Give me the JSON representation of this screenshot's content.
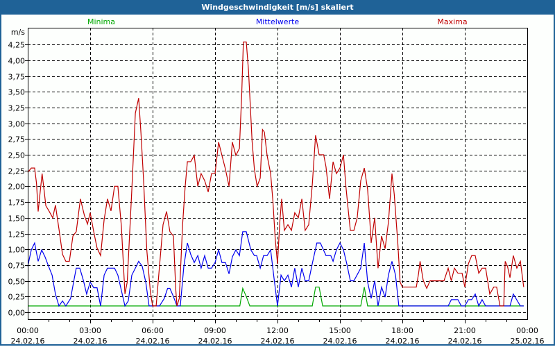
{
  "window": {
    "title": "Windgeschwindigkeit [m/s] skaliert"
  },
  "chart_data": {
    "type": "line",
    "title": "Windgeschwindigkeit [m/s] skaliert",
    "ylabel": "m/s",
    "xlabel": "",
    "ylim": [
      -0.1,
      4.5
    ],
    "xlim_hours": [
      0,
      24
    ],
    "grid": true,
    "legend_placement": "top",
    "y_ticks": [
      "0,00",
      "0,25",
      "0,50",
      "0,75",
      "1,00",
      "1,25",
      "1,50",
      "1,75",
      "2,00",
      "2,25",
      "2,50",
      "2,75",
      "3,00",
      "3,25",
      "3,50",
      "3,75",
      "4,00",
      "4,25"
    ],
    "x_ticks": [
      {
        "time": "00:00",
        "date": "24.02.16"
      },
      {
        "time": "03:00",
        "date": "24.02.16"
      },
      {
        "time": "06:00",
        "date": "24.02.16"
      },
      {
        "time": "09:00",
        "date": "24.02.16"
      },
      {
        "time": "12:00",
        "date": "24.02.16"
      },
      {
        "time": "15:00",
        "date": "24.02.16"
      },
      {
        "time": "18:00",
        "date": "24.02.16"
      },
      {
        "time": "21:00",
        "date": "24.02.16"
      },
      {
        "time": "00:00",
        "date": "25.02.16"
      }
    ],
    "series": [
      {
        "name": "Minima",
        "color": "#00a800",
        "points": [
          [
            0,
            0.1
          ],
          [
            10.19,
            0.1
          ],
          [
            10.33,
            0.38
          ],
          [
            10.5,
            0.25
          ],
          [
            10.67,
            0.1
          ],
          [
            13.67,
            0.1
          ],
          [
            13.83,
            0.4
          ],
          [
            14.0,
            0.4
          ],
          [
            14.17,
            0.1
          ],
          [
            16.0,
            0.1
          ],
          [
            16.17,
            0.4
          ],
          [
            16.33,
            0.1
          ],
          [
            23.83,
            0.1
          ]
        ]
      },
      {
        "name": "Mittelwerte",
        "color": "#0000f0",
        "points": [
          [
            0,
            0.73
          ],
          [
            0.17,
            0.99
          ],
          [
            0.33,
            1.1
          ],
          [
            0.5,
            0.81
          ],
          [
            0.67,
            0.99
          ],
          [
            0.83,
            0.88
          ],
          [
            1.0,
            0.73
          ],
          [
            1.17,
            0.59
          ],
          [
            1.33,
            0.29
          ],
          [
            1.5,
            0.1
          ],
          [
            1.67,
            0.18
          ],
          [
            1.83,
            0.1
          ],
          [
            2.06,
            0.22
          ],
          [
            2.22,
            0.51
          ],
          [
            2.33,
            0.7
          ],
          [
            2.5,
            0.7
          ],
          [
            2.67,
            0.51
          ],
          [
            2.83,
            0.29
          ],
          [
            3.0,
            0.48
          ],
          [
            3.17,
            0.39
          ],
          [
            3.33,
            0.39
          ],
          [
            3.5,
            0.1
          ],
          [
            3.67,
            0.59
          ],
          [
            3.83,
            0.7
          ],
          [
            4.17,
            0.7
          ],
          [
            4.33,
            0.59
          ],
          [
            4.67,
            0.1
          ],
          [
            4.83,
            0.18
          ],
          [
            5.0,
            0.59
          ],
          [
            5.17,
            0.7
          ],
          [
            5.33,
            0.81
          ],
          [
            5.5,
            0.73
          ],
          [
            5.67,
            0.48
          ],
          [
            5.83,
            0.1
          ],
          [
            6.33,
            0.1
          ],
          [
            6.56,
            0.22
          ],
          [
            6.72,
            0.38
          ],
          [
            6.83,
            0.38
          ],
          [
            7.0,
            0.25
          ],
          [
            7.17,
            0.1
          ],
          [
            7.33,
            0.1
          ],
          [
            7.5,
            0.73
          ],
          [
            7.67,
            1.1
          ],
          [
            7.83,
            0.92
          ],
          [
            8.0,
            0.79
          ],
          [
            8.17,
            0.9
          ],
          [
            8.33,
            0.7
          ],
          [
            8.5,
            0.9
          ],
          [
            8.67,
            0.7
          ],
          [
            8.83,
            0.7
          ],
          [
            9.0,
            0.79
          ],
          [
            9.17,
            0.99
          ],
          [
            9.33,
            0.79
          ],
          [
            9.5,
            0.79
          ],
          [
            9.67,
            0.61
          ],
          [
            9.83,
            0.88
          ],
          [
            10.0,
            0.99
          ],
          [
            10.17,
            0.9
          ],
          [
            10.33,
            1.28
          ],
          [
            10.5,
            1.28
          ],
          [
            10.72,
            0.99
          ],
          [
            10.89,
            0.9
          ],
          [
            11.0,
            0.9
          ],
          [
            11.17,
            0.7
          ],
          [
            11.33,
            0.9
          ],
          [
            11.5,
            0.9
          ],
          [
            11.67,
            0.99
          ],
          [
            11.83,
            0.55
          ],
          [
            12.0,
            0.1
          ],
          [
            12.17,
            0.59
          ],
          [
            12.33,
            0.5
          ],
          [
            12.5,
            0.59
          ],
          [
            12.67,
            0.4
          ],
          [
            12.83,
            0.7
          ],
          [
            13.0,
            0.4
          ],
          [
            13.17,
            0.7
          ],
          [
            13.33,
            0.5
          ],
          [
            13.5,
            0.5
          ],
          [
            13.67,
            0.77
          ],
          [
            13.89,
            1.1
          ],
          [
            14.06,
            1.1
          ],
          [
            14.33,
            0.9
          ],
          [
            14.56,
            0.9
          ],
          [
            14.67,
            0.81
          ],
          [
            14.83,
            0.99
          ],
          [
            15.0,
            1.1
          ],
          [
            15.17,
            0.99
          ],
          [
            15.33,
            0.77
          ],
          [
            15.5,
            0.5
          ],
          [
            15.67,
            0.5
          ],
          [
            16.0,
            0.7
          ],
          [
            16.17,
            1.1
          ],
          [
            16.33,
            0.48
          ],
          [
            16.5,
            0.22
          ],
          [
            16.67,
            0.5
          ],
          [
            16.83,
            0.1
          ],
          [
            17.0,
            0.4
          ],
          [
            17.17,
            0.24
          ],
          [
            17.33,
            0.59
          ],
          [
            17.5,
            0.81
          ],
          [
            17.67,
            0.59
          ],
          [
            17.83,
            0.1
          ],
          [
            20.2,
            0.1
          ],
          [
            20.35,
            0.2
          ],
          [
            20.67,
            0.2
          ],
          [
            20.83,
            0.1
          ],
          [
            21.0,
            0.1
          ],
          [
            21.17,
            0.2
          ],
          [
            21.33,
            0.2
          ],
          [
            21.5,
            0.29
          ],
          [
            21.67,
            0.1
          ],
          [
            21.83,
            0.2
          ],
          [
            22.0,
            0.1
          ],
          [
            23.17,
            0.1
          ],
          [
            23.33,
            0.29
          ],
          [
            23.67,
            0.1
          ],
          [
            23.83,
            0.1
          ]
        ]
      },
      {
        "name": "Maxima",
        "color": "#c00000",
        "points": [
          [
            0,
            2.22
          ],
          [
            0.17,
            2.29
          ],
          [
            0.33,
            2.29
          ],
          [
            0.42,
            2.05
          ],
          [
            0.5,
            1.6
          ],
          [
            0.61,
            1.95
          ],
          [
            0.69,
            2.2
          ],
          [
            0.78,
            1.95
          ],
          [
            0.87,
            1.69
          ],
          [
            1.0,
            1.62
          ],
          [
            1.2,
            1.5
          ],
          [
            1.33,
            1.7
          ],
          [
            1.5,
            1.32
          ],
          [
            1.67,
            0.92
          ],
          [
            1.83,
            0.81
          ],
          [
            2.0,
            0.81
          ],
          [
            2.17,
            1.21
          ],
          [
            2.33,
            1.28
          ],
          [
            2.53,
            1.8
          ],
          [
            2.72,
            1.54
          ],
          [
            2.87,
            1.4
          ],
          [
            3.0,
            1.58
          ],
          [
            3.17,
            1.28
          ],
          [
            3.33,
            1.02
          ],
          [
            3.5,
            0.9
          ],
          [
            3.67,
            1.47
          ],
          [
            3.83,
            1.8
          ],
          [
            4.0,
            1.61
          ],
          [
            4.17,
            2.0
          ],
          [
            4.33,
            2.0
          ],
          [
            4.5,
            1.36
          ],
          [
            4.67,
            0.29
          ],
          [
            4.78,
            0.48
          ],
          [
            5.0,
            1.94
          ],
          [
            5.17,
            3.16
          ],
          [
            5.33,
            3.4
          ],
          [
            5.44,
            2.84
          ],
          [
            5.56,
            2.13
          ],
          [
            5.72,
            0.99
          ],
          [
            5.89,
            0.33
          ],
          [
            6.0,
            0.1
          ],
          [
            6.17,
            0.1
          ],
          [
            6.33,
            0.73
          ],
          [
            6.5,
            1.39
          ],
          [
            6.67,
            1.6
          ],
          [
            6.83,
            1.28
          ],
          [
            7.0,
            1.21
          ],
          [
            7.11,
            0.37
          ],
          [
            7.17,
            0.1
          ],
          [
            7.28,
            0.22
          ],
          [
            7.44,
            1.39
          ],
          [
            7.56,
            1.98
          ],
          [
            7.67,
            2.39
          ],
          [
            7.83,
            2.39
          ],
          [
            8.0,
            2.49
          ],
          [
            8.17,
            2.0
          ],
          [
            8.33,
            2.2
          ],
          [
            8.5,
            2.09
          ],
          [
            8.67,
            1.91
          ],
          [
            8.83,
            2.2
          ],
          [
            9.0,
            2.2
          ],
          [
            9.17,
            2.7
          ],
          [
            9.33,
            2.49
          ],
          [
            9.5,
            2.27
          ],
          [
            9.67,
            2.0
          ],
          [
            9.83,
            2.7
          ],
          [
            10.0,
            2.49
          ],
          [
            10.17,
            2.6
          ],
          [
            10.28,
            3.45
          ],
          [
            10.36,
            4.29
          ],
          [
            10.5,
            4.29
          ],
          [
            10.61,
            3.82
          ],
          [
            10.78,
            2.71
          ],
          [
            10.89,
            2.27
          ],
          [
            11.02,
            2.0
          ],
          [
            11.17,
            2.13
          ],
          [
            11.28,
            2.9
          ],
          [
            11.37,
            2.86
          ],
          [
            11.5,
            2.49
          ],
          [
            11.67,
            2.2
          ],
          [
            11.78,
            1.76
          ],
          [
            11.89,
            1.17
          ],
          [
            12.0,
            0.77
          ],
          [
            12.11,
            1.43
          ],
          [
            12.2,
            1.8
          ],
          [
            12.33,
            1.3
          ],
          [
            12.5,
            1.39
          ],
          [
            12.67,
            1.3
          ],
          [
            12.83,
            1.58
          ],
          [
            13.0,
            1.5
          ],
          [
            13.17,
            1.8
          ],
          [
            13.33,
            1.3
          ],
          [
            13.5,
            1.39
          ],
          [
            13.67,
            2.02
          ],
          [
            13.83,
            2.81
          ],
          [
            14.0,
            2.5
          ],
          [
            14.22,
            2.5
          ],
          [
            14.33,
            2.31
          ],
          [
            14.5,
            1.8
          ],
          [
            14.67,
            2.39
          ],
          [
            14.83,
            2.2
          ],
          [
            15.0,
            2.29
          ],
          [
            15.17,
            2.5
          ],
          [
            15.28,
            2.02
          ],
          [
            15.39,
            1.65
          ],
          [
            15.5,
            1.3
          ],
          [
            15.67,
            1.3
          ],
          [
            15.83,
            1.5
          ],
          [
            16.0,
            2.09
          ],
          [
            16.17,
            2.29
          ],
          [
            16.33,
            1.95
          ],
          [
            16.44,
            1.43
          ],
          [
            16.5,
            1.1
          ],
          [
            16.67,
            1.5
          ],
          [
            16.83,
            0.7
          ],
          [
            17.0,
            1.21
          ],
          [
            17.17,
            1.01
          ],
          [
            17.33,
            1.43
          ],
          [
            17.5,
            2.2
          ],
          [
            17.61,
            1.87
          ],
          [
            17.78,
            1.1
          ],
          [
            17.89,
            0.48
          ],
          [
            18.0,
            0.4
          ],
          [
            18.67,
            0.4
          ],
          [
            18.78,
            0.62
          ],
          [
            18.85,
            0.81
          ],
          [
            19.0,
            0.51
          ],
          [
            19.17,
            0.38
          ],
          [
            19.33,
            0.5
          ],
          [
            20.0,
            0.5
          ],
          [
            20.2,
            0.7
          ],
          [
            20.35,
            0.5
          ],
          [
            20.5,
            0.7
          ],
          [
            20.67,
            0.62
          ],
          [
            20.87,
            0.62
          ],
          [
            21.0,
            0.4
          ],
          [
            21.17,
            0.77
          ],
          [
            21.33,
            0.9
          ],
          [
            21.5,
            0.9
          ],
          [
            21.67,
            0.62
          ],
          [
            21.83,
            0.7
          ],
          [
            22.0,
            0.7
          ],
          [
            22.2,
            0.29
          ],
          [
            22.39,
            0.4
          ],
          [
            22.53,
            0.4
          ],
          [
            22.69,
            0.1
          ],
          [
            22.87,
            0.1
          ],
          [
            22.94,
            0.81
          ],
          [
            23.05,
            0.73
          ],
          [
            23.17,
            0.55
          ],
          [
            23.33,
            0.9
          ],
          [
            23.5,
            0.7
          ],
          [
            23.67,
            0.81
          ],
          [
            23.83,
            0.4
          ]
        ]
      }
    ]
  }
}
